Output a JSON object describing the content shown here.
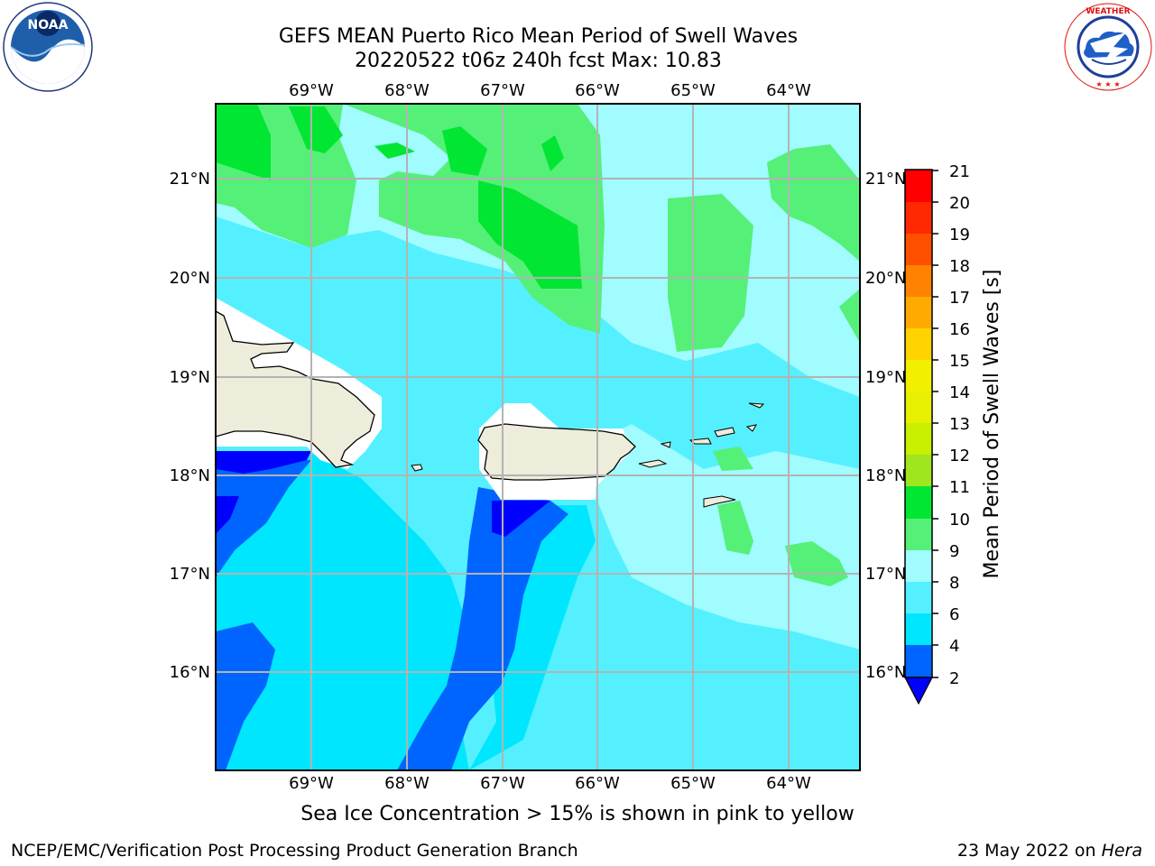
{
  "title": {
    "line1": "GEFS MEAN Puerto Rico Mean Period of Swell Waves",
    "line2": "20220522 t06z 240h fcst   Max: 10.83"
  },
  "map": {
    "lon_labels": [
      "69°W",
      "68°W",
      "67°W",
      "66°W",
      "65°W",
      "64°W"
    ],
    "lat_labels": [
      "21°N",
      "20°N",
      "19°N",
      "18°N",
      "17°N",
      "16°N"
    ]
  },
  "colorbar": {
    "label": "Mean Period of Swell Waves [s]",
    "ticks": [
      "21",
      "20",
      "19",
      "18",
      "17",
      "16",
      "15",
      "14",
      "13",
      "12",
      "11",
      "10",
      "9",
      "8",
      "6",
      "4",
      "2"
    ],
    "colors": {
      "2-4": "#0064ff",
      "4-6": "#00e6ff",
      "6-8": "#55f0ff",
      "8-9": "#a0fcff",
      "9-10": "#55f078",
      "10-11": "#00e632",
      "11-12": "#3cd21e",
      "12-13": "#a0e61e",
      "13-14": "#c8f000",
      "14-15": "#e6f000",
      "15-16": "#f0f000",
      "16-17": "#ffd200",
      "17-18": "#ffaa00",
      "18-19": "#ff8200",
      "19-20": "#ff5000",
      "20-21": "#ff2800",
      "over-21": "#ff0000",
      "under-2": "#0000ff"
    }
  },
  "caption": "Sea Ice Concentration > 15% is shown in pink to yellow",
  "footer": {
    "left": "NCEP/EMC/Verification Post Processing Product Generation Branch",
    "right_prefix": "23 May 2022 on ",
    "right_host": "Hera"
  },
  "logos": {
    "left": "noaa-logo",
    "right": "nws-logo"
  }
}
